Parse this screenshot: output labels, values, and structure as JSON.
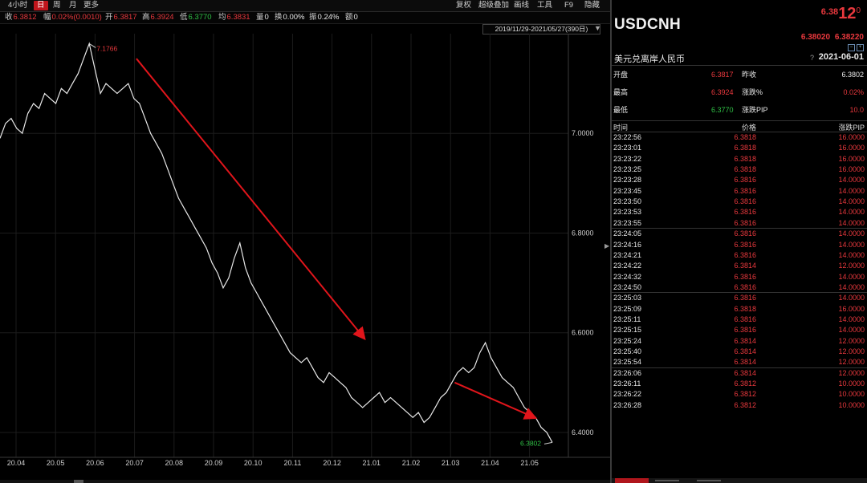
{
  "toolbar": {
    "left_items": [
      "4小时",
      "日",
      "周",
      "月",
      "更多"
    ],
    "active": "日",
    "right_items": [
      "复权",
      "超级叠加",
      "画线",
      "工具",
      "F9",
      "隐藏"
    ]
  },
  "stats": {
    "close_label": "收",
    "close": "6.3812",
    "change_label": "幅",
    "change": "0.02%(0.0010)",
    "open_label": "开",
    "open": "6.3817",
    "high_label": "高",
    "high": "6.3924",
    "low_label": "低",
    "low": "6.3770",
    "avg_label": "均",
    "avg": "6.3831",
    "vol_label": "量",
    "vol": "0",
    "turnover_label": "换",
    "turnover": "0.00%",
    "amp_label": "振",
    "amp": "0.24%",
    "amount_label": "额",
    "amount": "0"
  },
  "range_box": "2019/11/29-2021/05/27(390日)",
  "chart_data": {
    "type": "line",
    "x_ticks": [
      "20.04",
      "20.05",
      "20.06",
      "20.07",
      "20.08",
      "20.09",
      "20.10",
      "20.11",
      "20.12",
      "21.01",
      "21.02",
      "21.03",
      "21.04",
      "21.05"
    ],
    "y_ticks": [
      "7.0000",
      "6.8000",
      "6.6000",
      "6.4000"
    ],
    "ylim": [
      6.35,
      7.2
    ],
    "series": [
      {
        "values": [
          6.99,
          7.02,
          7.03,
          7.01,
          7.0,
          7.04,
          7.06,
          7.05,
          7.08,
          7.07,
          7.06,
          7.09,
          7.08,
          7.1,
          7.12,
          7.15,
          7.18,
          7.13,
          7.08,
          7.1,
          7.09,
          7.08,
          7.09,
          7.1,
          7.07,
          7.06,
          7.03,
          7.0,
          6.98,
          6.96,
          6.93,
          6.9,
          6.87,
          6.85,
          6.83,
          6.81,
          6.79,
          6.77,
          6.74,
          6.72,
          6.69,
          6.71,
          6.75,
          6.78,
          6.73,
          6.7,
          6.68,
          6.66,
          6.64,
          6.62,
          6.6,
          6.58,
          6.56,
          6.55,
          6.54,
          6.55,
          6.53,
          6.51,
          6.5,
          6.52,
          6.51,
          6.5,
          6.49,
          6.47,
          6.46,
          6.45,
          6.46,
          6.47,
          6.48,
          6.46,
          6.47,
          6.46,
          6.45,
          6.44,
          6.43,
          6.44,
          6.42,
          6.43,
          6.45,
          6.47,
          6.48,
          6.5,
          6.52,
          6.53,
          6.52,
          6.53,
          6.56,
          6.58,
          6.55,
          6.53,
          6.51,
          6.5,
          6.49,
          6.47,
          6.45,
          6.44,
          6.43,
          6.41,
          6.4,
          6.38
        ],
        "color": "#e8e8e8"
      }
    ],
    "annotations": [
      {
        "text": "7.1766",
        "value": 7.1766,
        "color": "#e8383d"
      },
      {
        "text": "6.3802",
        "value": 6.3802,
        "color": "#2fbf45"
      }
    ],
    "arrows": [
      {
        "from": [
          0.24,
          7.15
        ],
        "to": [
          0.64,
          6.59
        ]
      },
      {
        "from": [
          0.8,
          6.5
        ],
        "to": [
          0.94,
          6.43
        ]
      }
    ],
    "grid": true
  },
  "right_panel": {
    "symbol": "USDCNH",
    "big_price_part1": "6.38",
    "big_price_part2": "12",
    "big_price_part3": "0",
    "bid": "6.38020",
    "ask": "6.38220",
    "name_cn": "美元兑离岸人民币",
    "help": "?",
    "date": "2021-06-01",
    "quotes": [
      {
        "l1": "开盘",
        "v1": "6.3817",
        "c1": "red",
        "l2": "昨收",
        "v2": "6.3802",
        "c2": "white"
      },
      {
        "l1": "最高",
        "v1": "6.3924",
        "c1": "red",
        "l2": "涨跌%",
        "v2": "0.02%",
        "c2": "red"
      },
      {
        "l1": "最低",
        "v1": "6.3770",
        "c1": "green",
        "l2": "涨跌PIP",
        "v2": "10.0",
        "c2": "red"
      }
    ],
    "tick_header": {
      "time": "时间",
      "price": "价格",
      "pip": "涨跌PIP"
    },
    "ticks": [
      {
        "time": "23:22:56",
        "price": "6.3818",
        "pip": "16.0000"
      },
      {
        "time": "23:23:01",
        "price": "6.3818",
        "pip": "16.0000"
      },
      {
        "time": "23:23:22",
        "price": "6.3818",
        "pip": "16.0000"
      },
      {
        "time": "23:23:25",
        "price": "6.3818",
        "pip": "16.0000"
      },
      {
        "time": "23:23:28",
        "price": "6.3816",
        "pip": "14.0000"
      },
      {
        "time": "23:23:45",
        "price": "6.3816",
        "pip": "14.0000"
      },
      {
        "time": "23:23:50",
        "price": "6.3816",
        "pip": "14.0000"
      },
      {
        "time": "23:23:53",
        "price": "6.3816",
        "pip": "14.0000"
      },
      {
        "time": "23:23:55",
        "price": "6.3816",
        "pip": "14.0000"
      },
      {
        "time": "23:24:05",
        "price": "6.3816",
        "pip": "14.0000"
      },
      {
        "time": "23:24:16",
        "price": "6.3816",
        "pip": "14.0000"
      },
      {
        "time": "23:24:21",
        "price": "6.3816",
        "pip": "14.0000"
      },
      {
        "time": "23:24:22",
        "price": "6.3814",
        "pip": "12.0000"
      },
      {
        "time": "23:24:32",
        "price": "6.3816",
        "pip": "14.0000"
      },
      {
        "time": "23:24:50",
        "price": "6.3816",
        "pip": "14.0000"
      },
      {
        "time": "23:25:03",
        "price": "6.3816",
        "pip": "14.0000"
      },
      {
        "time": "23:25:09",
        "price": "6.3818",
        "pip": "16.0000"
      },
      {
        "time": "23:25:11",
        "price": "6.3816",
        "pip": "14.0000"
      },
      {
        "time": "23:25:15",
        "price": "6.3816",
        "pip": "14.0000"
      },
      {
        "time": "23:25:24",
        "price": "6.3814",
        "pip": "12.0000"
      },
      {
        "time": "23:25:40",
        "price": "6.3814",
        "pip": "12.0000"
      },
      {
        "time": "23:25:54",
        "price": "6.3814",
        "pip": "12.0000"
      },
      {
        "time": "23:26:06",
        "price": "6.3814",
        "pip": "12.0000"
      },
      {
        "time": "23:26:11",
        "price": "6.3812",
        "pip": "10.0000"
      },
      {
        "time": "23:26:22",
        "price": "6.3812",
        "pip": "10.0000"
      },
      {
        "time": "23:26:28",
        "price": "6.3812",
        "pip": "10.0000"
      }
    ]
  }
}
